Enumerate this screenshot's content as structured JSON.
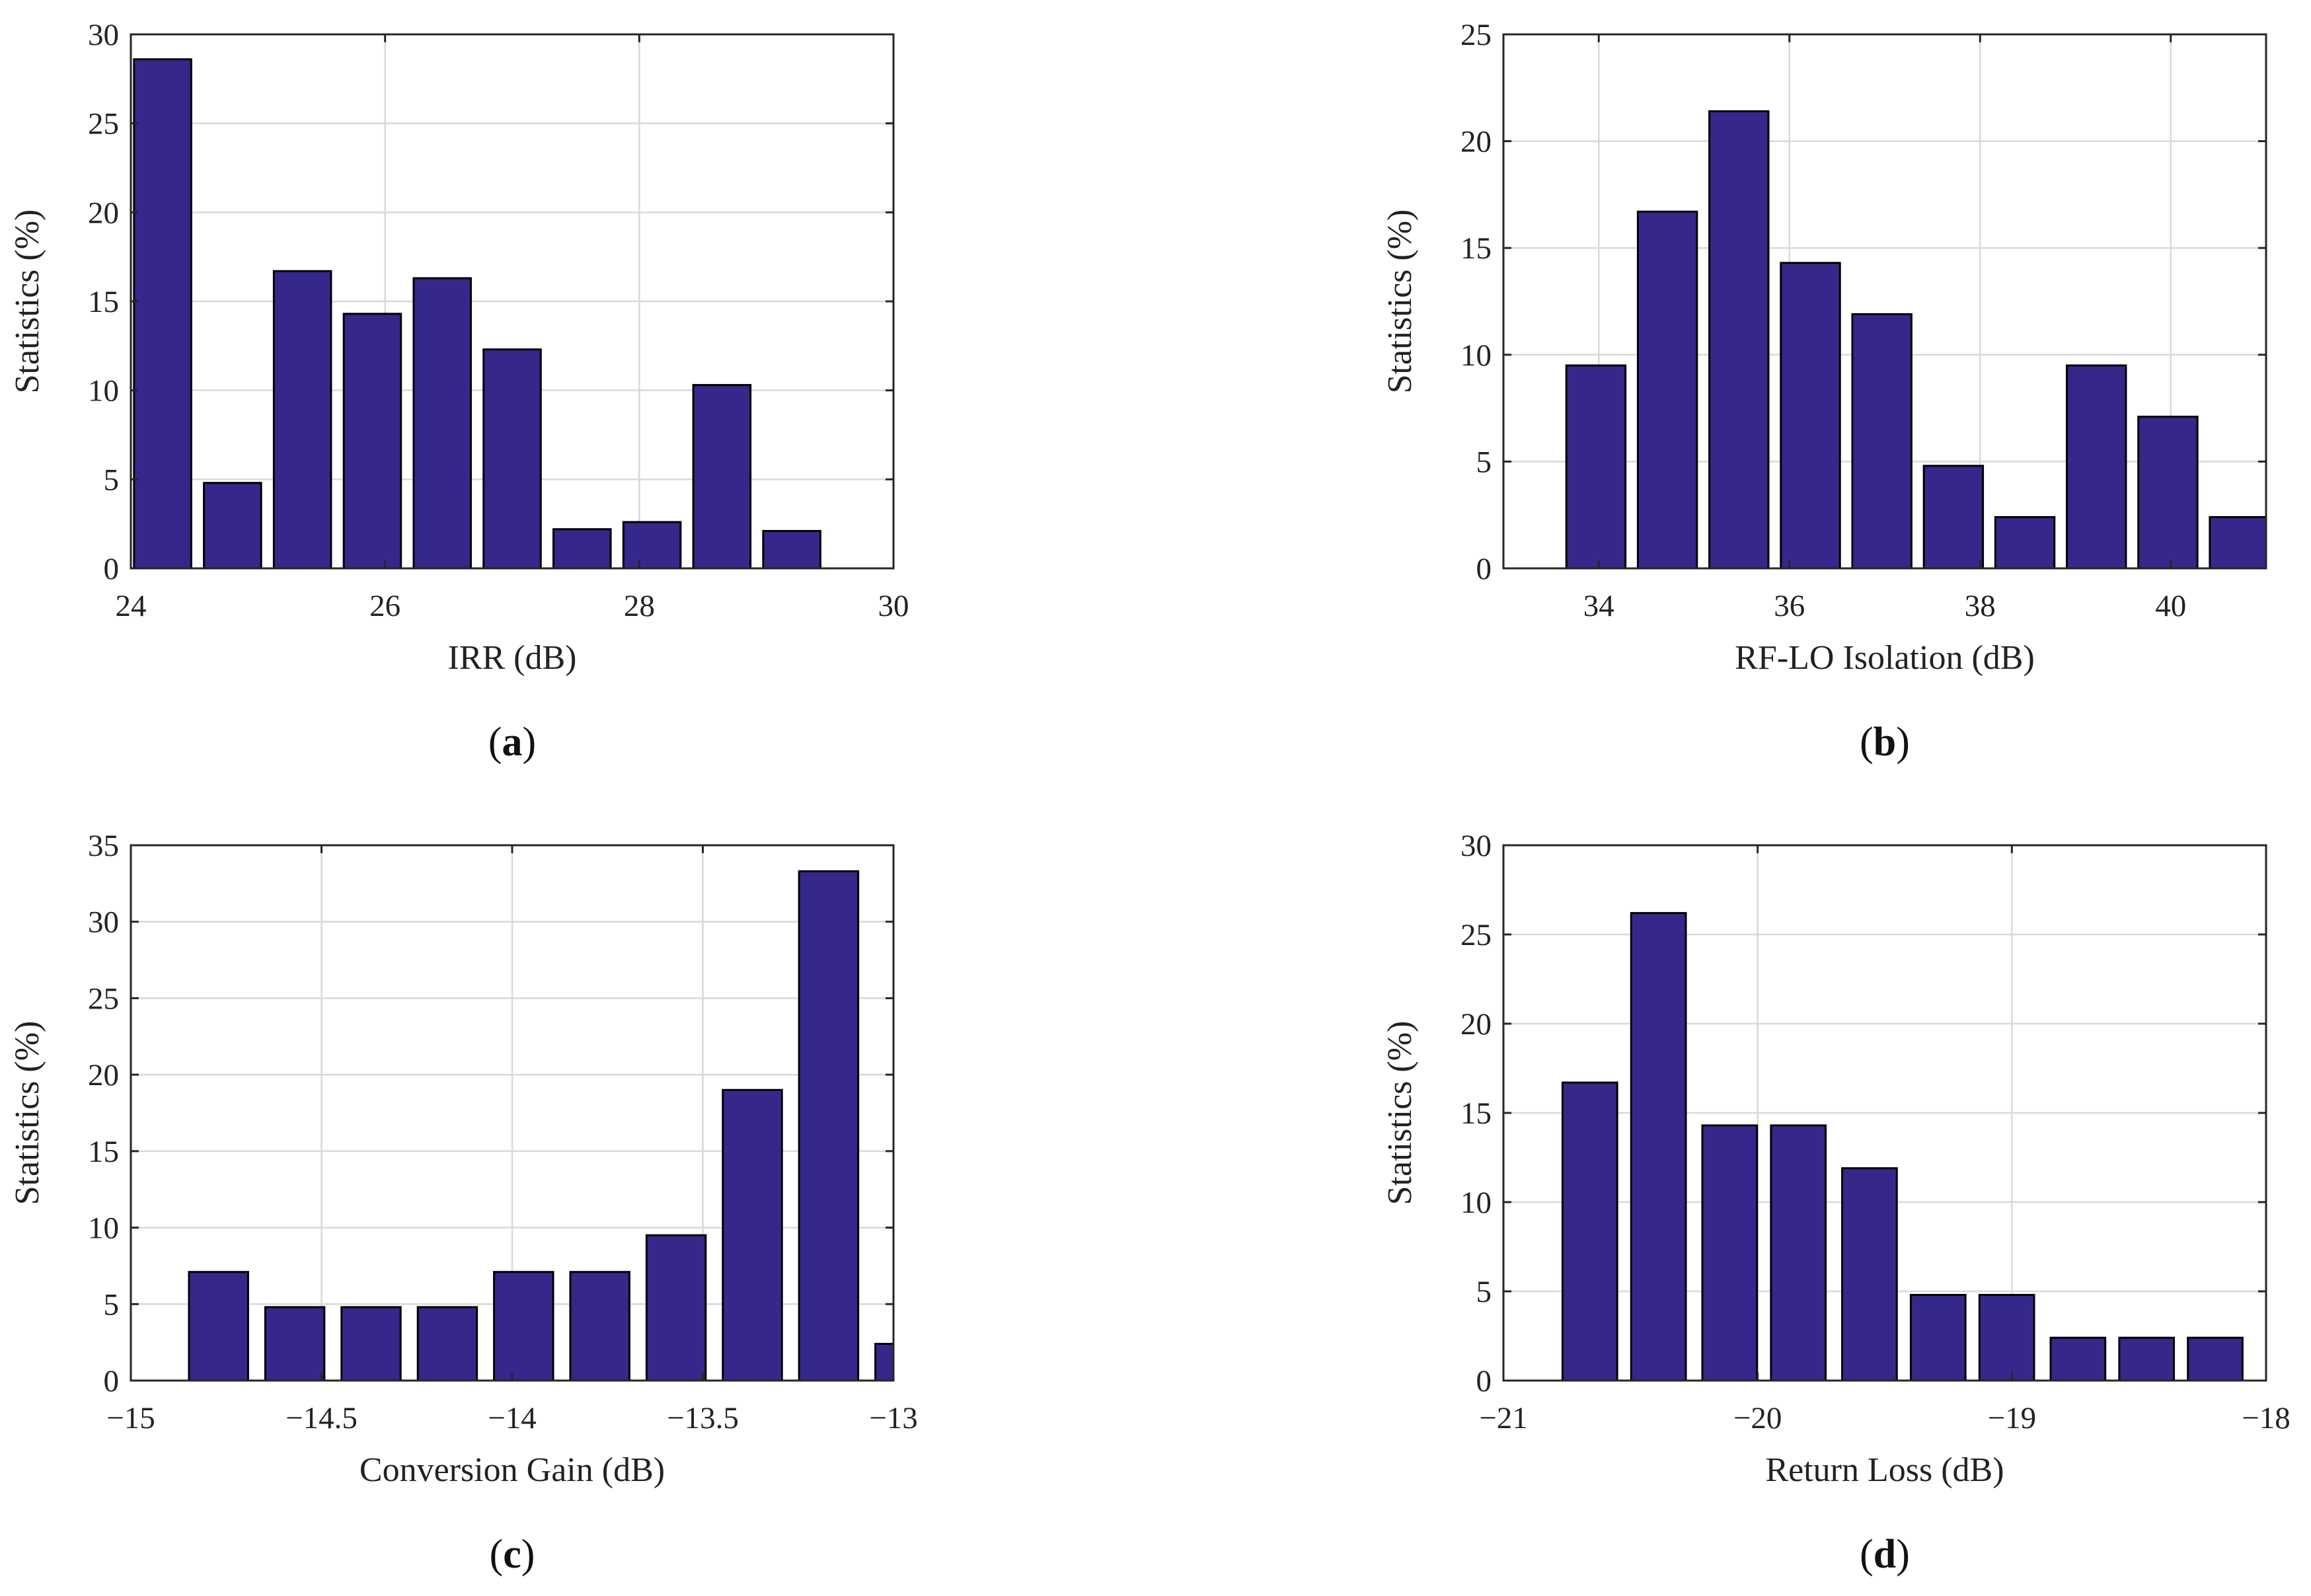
{
  "bar_color": "#35288A",
  "chart_data": [
    {
      "type": "bar",
      "panel_label": "a",
      "xlabel": "IRR (dB)",
      "ylabel": "Statistics (%)",
      "xlim": [
        24,
        30
      ],
      "ylim": [
        0,
        30
      ],
      "xticks": [
        24,
        26,
        28,
        30
      ],
      "yticks": [
        0,
        5,
        10,
        15,
        20,
        25,
        30
      ],
      "bar_width": 0.45,
      "x": [
        24.25,
        24.8,
        25.35,
        25.9,
        26.45,
        27.0,
        27.55,
        28.1,
        28.65,
        29.2
      ],
      "values": [
        28.6,
        4.8,
        16.7,
        14.3,
        16.3,
        12.3,
        2.2,
        2.6,
        10.3,
        2.1
      ]
    },
    {
      "type": "bar",
      "panel_label": "b",
      "xlabel": "RF-LO Isolation (dB)",
      "ylabel": "Statistics (%)",
      "xlim": [
        33,
        41
      ],
      "ylim": [
        0,
        25
      ],
      "xticks": [
        34,
        36,
        38,
        40
      ],
      "yticks": [
        0,
        5,
        10,
        15,
        20,
        25
      ],
      "bar_width": 0.62,
      "x": [
        33.97,
        34.72,
        35.47,
        36.22,
        36.97,
        37.72,
        38.47,
        39.22,
        39.97,
        40.72
      ],
      "values": [
        9.5,
        16.7,
        21.4,
        14.3,
        11.9,
        4.8,
        2.4,
        9.5,
        7.1,
        2.4
      ]
    },
    {
      "type": "bar",
      "panel_label": "c",
      "xlabel": "Conversion Gain (dB)",
      "ylabel": "Statistics (%)",
      "xlim": [
        -15,
        -13
      ],
      "ylim": [
        0,
        35
      ],
      "xticks": [
        -15,
        -14.5,
        -14,
        -13.5,
        -13
      ],
      "xtick_labels": [
        "−15",
        "−14.5",
        "−14",
        "−13.5",
        "−13"
      ],
      "yticks": [
        0,
        5,
        10,
        15,
        20,
        25,
        30,
        35
      ],
      "bar_width": 0.155,
      "x": [
        -14.77,
        -14.57,
        -14.37,
        -14.17,
        -13.97,
        -13.77,
        -13.57,
        -13.37,
        -13.17,
        -12.97
      ],
      "values": [
        7.1,
        4.8,
        4.8,
        4.8,
        7.1,
        7.1,
        9.5,
        19.0,
        33.3,
        2.4
      ]
    },
    {
      "type": "bar",
      "panel_label": "d",
      "xlabel": "Return Loss (dB)",
      "ylabel": "Statistics (%)",
      "xlim": [
        -21,
        -18
      ],
      "ylim": [
        0,
        30
      ],
      "xticks": [
        -21,
        -20,
        -19,
        -18
      ],
      "xtick_labels": [
        "−21",
        "−20",
        "−19",
        "−18"
      ],
      "yticks": [
        0,
        5,
        10,
        15,
        20,
        25,
        30
      ],
      "bar_width": 0.215,
      "x": [
        -20.66,
        -20.39,
        -20.11,
        -19.84,
        -19.56,
        -19.29,
        -19.02,
        -18.74,
        -18.47,
        -18.2
      ],
      "values": [
        16.7,
        26.2,
        14.3,
        14.3,
        11.9,
        4.8,
        4.8,
        2.4,
        2.4,
        2.4
      ]
    }
  ]
}
